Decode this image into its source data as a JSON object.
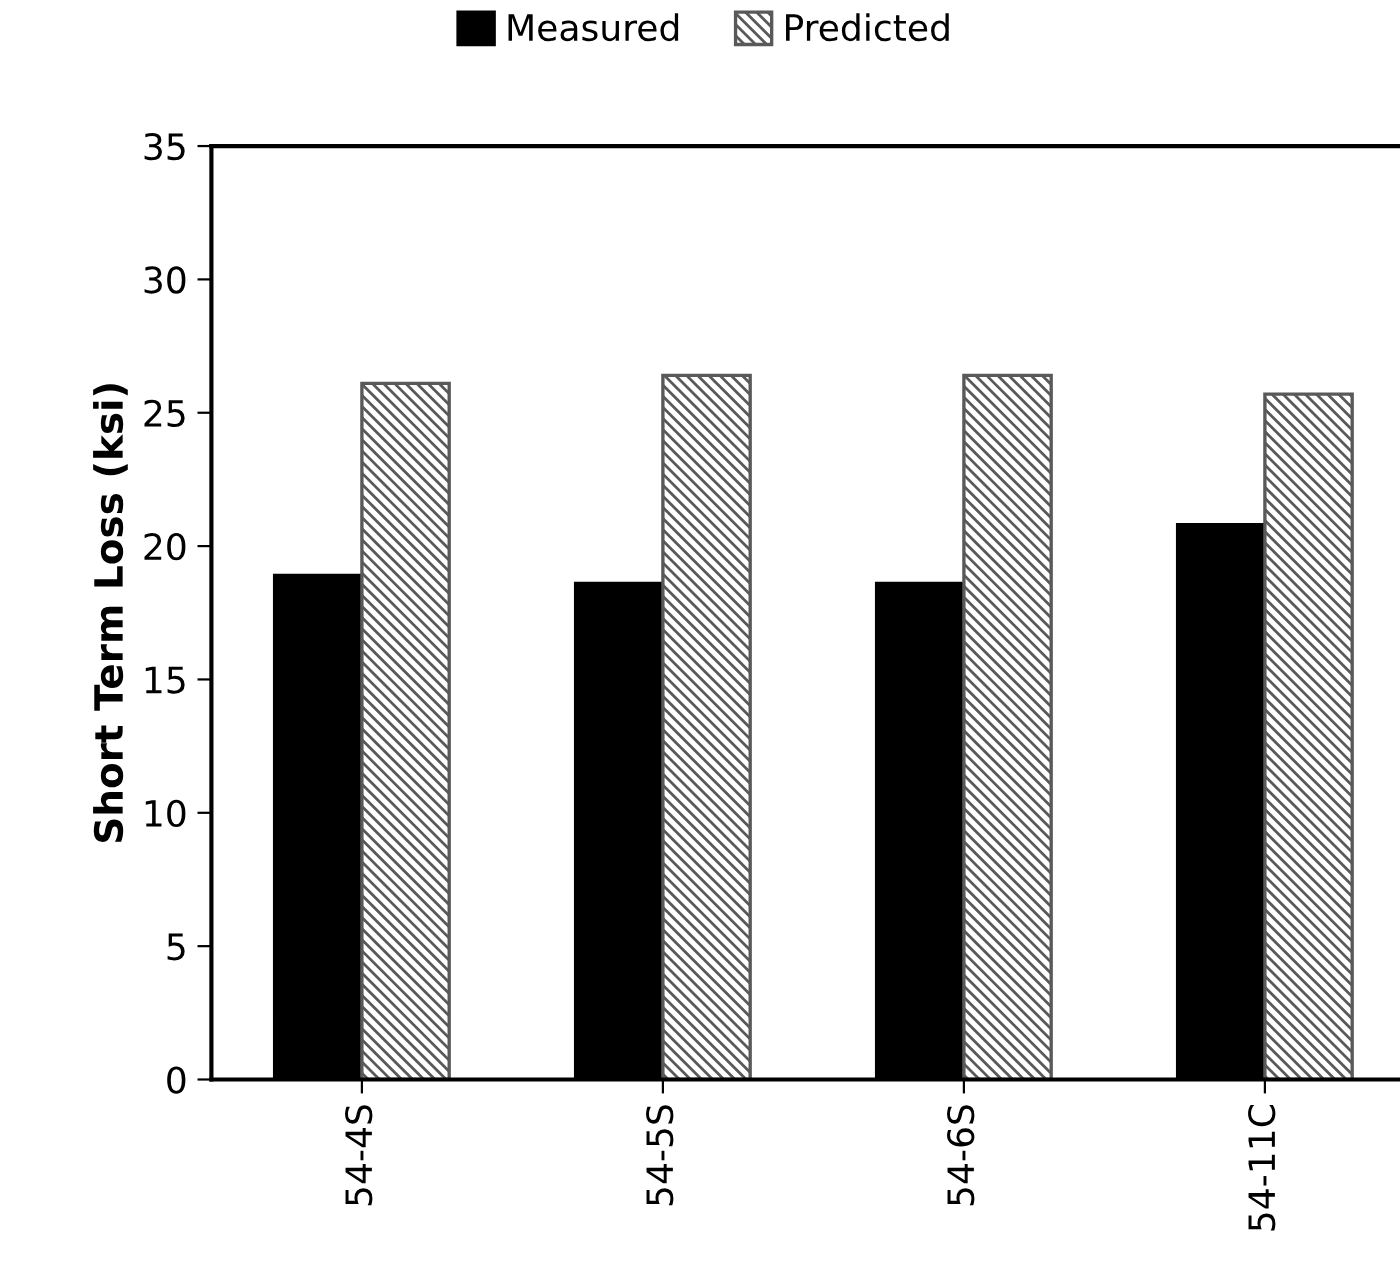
{
  "chart_data": {
    "type": "bar",
    "ylabel": "Short Term Loss (ksi)",
    "categories": [
      "54-4S",
      "54-5S",
      "54-6S",
      "54-11C"
    ],
    "series": [
      {
        "name": "Measured",
        "color": "#000000",
        "values": [
          18.9,
          18.6,
          18.6,
          20.8
        ]
      },
      {
        "name": "Predicted",
        "color": "#595959",
        "values": [
          26.1,
          26.4,
          26.4,
          25.7
        ]
      }
    ],
    "ylim": [
      0,
      35
    ],
    "yticks": [
      0,
      5,
      10,
      15,
      20,
      25,
      30,
      35
    ],
    "grid": false,
    "legend": "top"
  }
}
